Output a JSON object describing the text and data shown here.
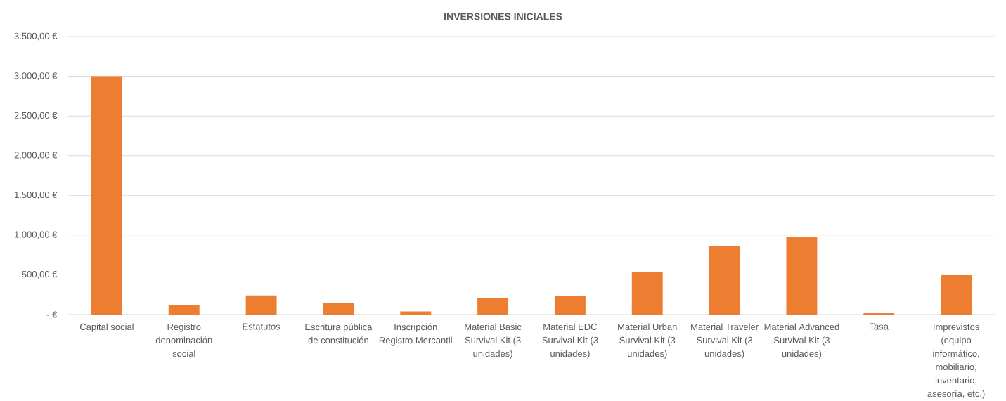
{
  "chart_data": {
    "type": "bar",
    "title": "INVERSIONES INICIALES",
    "categories": [
      "Capital social",
      "Registro denominación social",
      "Estatutos",
      "Escritura pública de constitución",
      "Inscripción Registro Mercantil",
      "Material Basic Survival Kit (3 unidades)",
      "Material EDC Survival Kit (3 unidades)",
      "Material Urban Survival Kit (3 unidades)",
      "Material Traveler Survival Kit (3 unidades)",
      "Material Advanced Survival Kit (3 unidades)",
      "Tasa",
      "Imprevistos (equipo informático, mobiliario, inventario, asesoría, etc.)"
    ],
    "values": [
      3000,
      120,
      240,
      150,
      40,
      210,
      230,
      530,
      860,
      980,
      20,
      500
    ],
    "color": "#ed7d31",
    "ylim": [
      0,
      3500
    ],
    "yticks": [
      {
        "value": 0,
        "label": "-  €"
      },
      {
        "value": 500,
        "label": "500,00 €"
      },
      {
        "value": 1000,
        "label": "1.000,00 €"
      },
      {
        "value": 1500,
        "label": "1.500,00 €"
      },
      {
        "value": 2000,
        "label": "2.000,00 €"
      },
      {
        "value": 2500,
        "label": "2.500,00 €"
      },
      {
        "value": 3000,
        "label": "3.000,00 €"
      },
      {
        "value": 3500,
        "label": "3.500,00 €"
      }
    ],
    "grid": "y"
  }
}
